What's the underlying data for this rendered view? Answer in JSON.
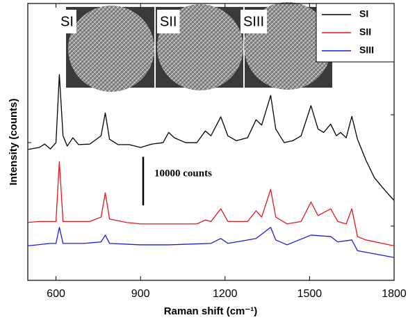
{
  "chart_data": {
    "type": "line",
    "x_label": "Raman shift (cm⁻¹)",
    "y_label": "Intensity (counts)",
    "annotation": "10000 counts",
    "scale_bar": 10000,
    "inset_labels": [
      "SI",
      "SII",
      "SIII"
    ],
    "xlim": [
      500,
      1800
    ],
    "xticks": [
      600,
      900,
      1200,
      1500,
      1800
    ],
    "ylim": [
      0,
      56900
    ],
    "legend": "upper right",
    "series": [
      {
        "name": "SI",
        "color": "#000000",
        "x": [
          500,
          540,
          560,
          580,
          600,
          612,
          625,
          640,
          660,
          680,
          720,
          760,
          775,
          790,
          820,
          860,
          900,
          940,
          980,
          1000,
          1020,
          1060,
          1100,
          1130,
          1150,
          1185,
          1210,
          1240,
          1280,
          1310,
          1330,
          1362,
          1380,
          1410,
          1440,
          1470,
          1505,
          1530,
          1550,
          1575,
          1595,
          1610,
          1630,
          1650,
          1670,
          1700,
          1730,
          1760,
          1800
        ],
        "values": [
          26900,
          27300,
          28000,
          27000,
          28300,
          42300,
          29700,
          27600,
          29300,
          27900,
          28000,
          29700,
          34400,
          29000,
          27900,
          27900,
          27300,
          28000,
          28300,
          30400,
          29300,
          28300,
          28300,
          30700,
          29700,
          33600,
          29700,
          28700,
          29300,
          33000,
          31900,
          38000,
          31100,
          28300,
          28700,
          29700,
          35900,
          31100,
          30400,
          32100,
          29700,
          30400,
          29300,
          33700,
          29000,
          24700,
          21100,
          19000,
          16400
        ]
      },
      {
        "name": "SII",
        "color": "#e8141b",
        "x": [
          500,
          540,
          580,
          600,
          612,
          625,
          660,
          720,
          760,
          775,
          790,
          850,
          900,
          950,
          1000,
          1100,
          1130,
          1150,
          1185,
          1210,
          1280,
          1310,
          1330,
          1362,
          1380,
          1420,
          1470,
          1505,
          1530,
          1575,
          1600,
          1630,
          1650,
          1670,
          1700,
          1800
        ],
        "values": [
          11900,
          12100,
          12100,
          12100,
          24400,
          12100,
          12100,
          12100,
          13000,
          18000,
          12600,
          11900,
          11600,
          11600,
          11600,
          11600,
          12400,
          12100,
          14700,
          12100,
          12100,
          14300,
          13000,
          18700,
          13000,
          11600,
          12100,
          16100,
          13300,
          14700,
          12100,
          11600,
          14700,
          9000,
          8300,
          7100
        ]
      },
      {
        "name": "SIII",
        "color": "#1a1ae0",
        "x": [
          500,
          580,
          600,
          612,
          625,
          700,
          760,
          775,
          790,
          900,
          1000,
          1150,
          1185,
          1210,
          1310,
          1362,
          1380,
          1420,
          1505,
          1575,
          1600,
          1650,
          1670,
          1800
        ],
        "values": [
          7100,
          7600,
          7600,
          10900,
          7600,
          7600,
          7900,
          9300,
          7600,
          7300,
          7300,
          7600,
          8600,
          7600,
          8600,
          10900,
          8300,
          7300,
          9300,
          9000,
          7900,
          8300,
          6100,
          4700
        ]
      }
    ]
  }
}
